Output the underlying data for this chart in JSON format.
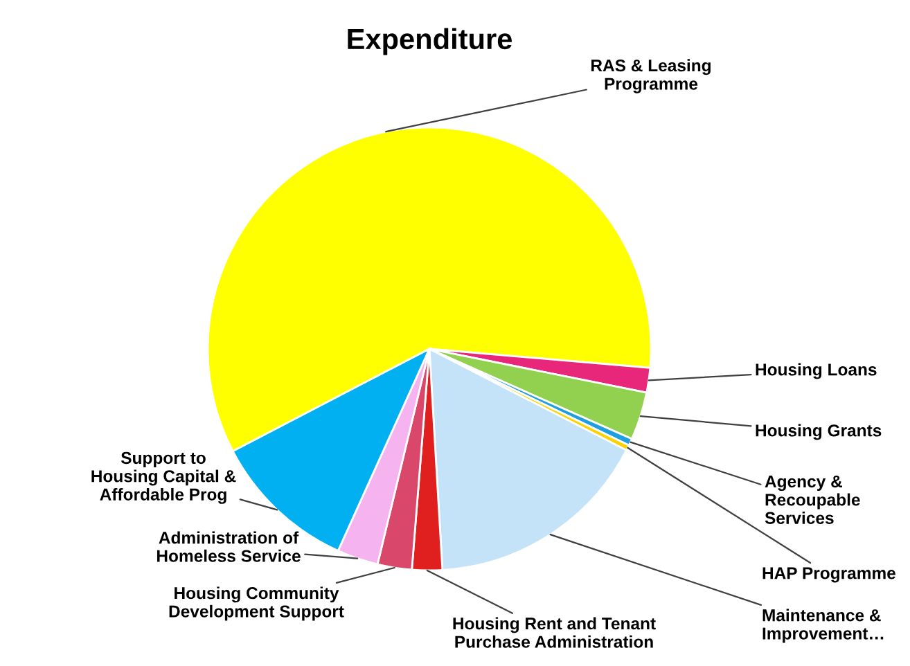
{
  "chart_data": {
    "type": "pie",
    "title": "Expenditure",
    "categories": [
      "RAS & Leasing\nProgramme",
      "Housing Loans",
      "Housing Grants",
      "Agency &\nRecoupable\nServices",
      "HAP Programme",
      "Maintenance &\nImprovement…",
      "Housing Rent and Tenant\nPurchase Administration",
      "Housing Community\nDevelopment Support",
      "Administration of\nHomeless Service",
      "Support to\nHousing Capital &\nAffordable Prog"
    ],
    "values": [
      59,
      1.8,
      3.5,
      0.5,
      0.4,
      16.5,
      2.2,
      2.5,
      3,
      10.6
    ],
    "colors": [
      "#ffff00",
      "#e8267a",
      "#92d050",
      "#1f9fe0",
      "#ffd000",
      "#c5e3f8",
      "#e0201e",
      "#d9476a",
      "#f5b3f0",
      "#00b0f0"
    ],
    "legend": false
  }
}
